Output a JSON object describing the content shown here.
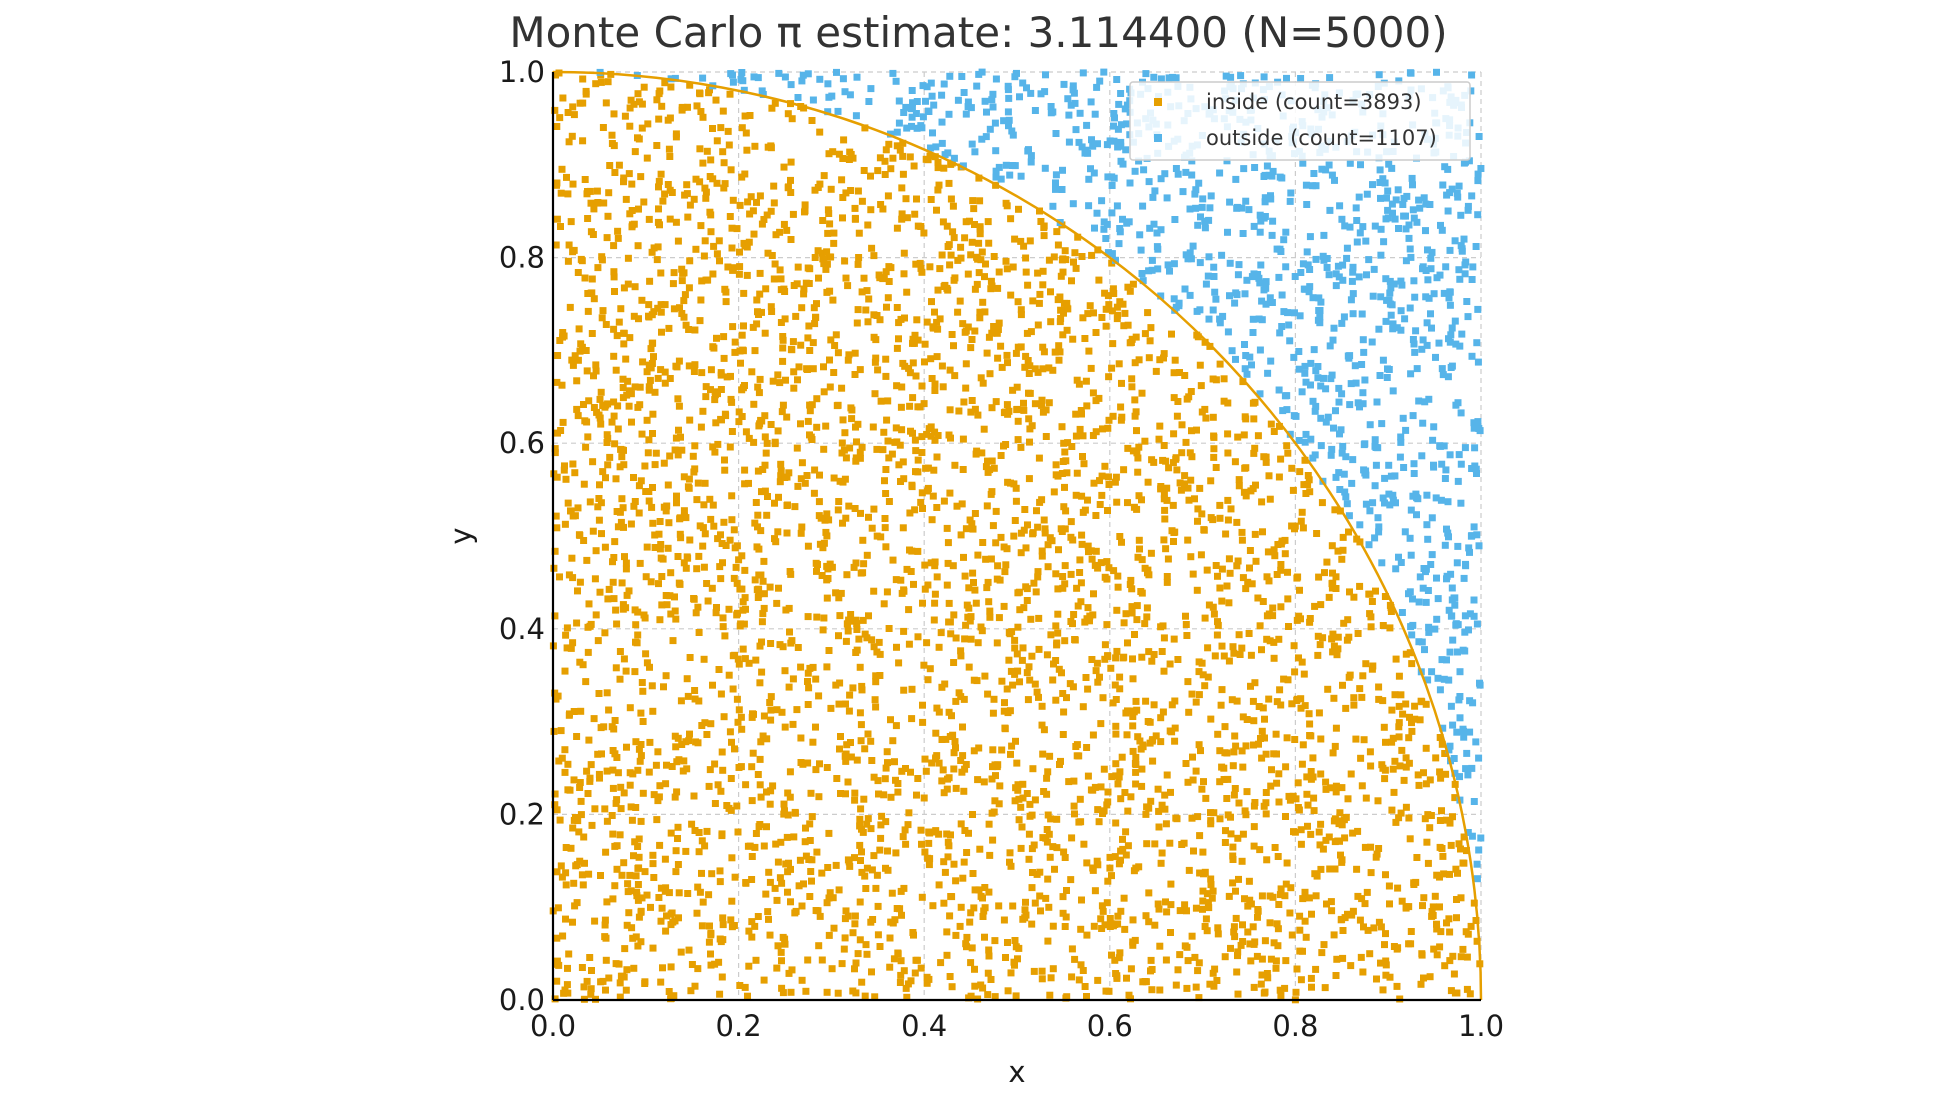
{
  "chart_data": {
    "type": "scatter",
    "title": "Monte Carlo π estimate: 3.114400 (N=5000)",
    "xlabel": "x",
    "ylabel": "y",
    "xlim": [
      0.0,
      1.0
    ],
    "ylim": [
      0.0,
      1.0
    ],
    "xticks": [
      "0.0",
      "0.2",
      "0.4",
      "0.6",
      "0.8",
      "1.0"
    ],
    "yticks": [
      "0.0",
      "0.2",
      "0.4",
      "0.6",
      "0.8",
      "1.0"
    ],
    "xtick_values": [
      0,
      0.2,
      0.4,
      0.6,
      0.8,
      1.0
    ],
    "ytick_values": [
      0,
      0.2,
      0.4,
      0.6,
      0.8,
      1.0
    ],
    "grid": true,
    "legend_position": "top-right",
    "series": [
      {
        "name": "inside (count=3893)",
        "count": 3893,
        "color": "#E69F00"
      },
      {
        "name": "outside (count=1107)",
        "count": 1107,
        "color": "#56B4E9"
      }
    ],
    "boundary": {
      "type": "quarter-circle",
      "radius": 1.0,
      "color": "#E69F00"
    },
    "n_total": 5000
  }
}
